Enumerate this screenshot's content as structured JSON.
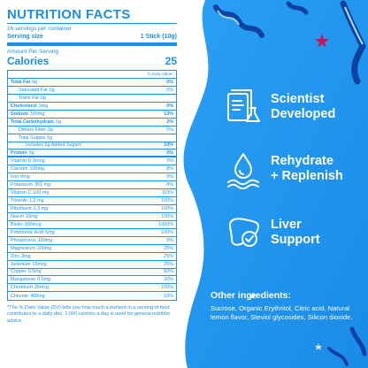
{
  "panel": {
    "title": "NUTRITION FACTS",
    "servings_per_container": "16 servings per container",
    "serving_size_label": "Serving size",
    "serving_size_value": "1 Stick (10g)",
    "amount_per_serving": "Amount Per Serving",
    "calories_label": "Calories",
    "calories_value": "25",
    "dv_header": "% Daily Value*",
    "rows": [
      {
        "label": "Total Fat",
        "amount": "0g",
        "dv": "0%",
        "bold": true,
        "indent": 0
      },
      {
        "label": "Saturated Fat",
        "amount": "0g",
        "dv": "0%",
        "bold": false,
        "indent": 1
      },
      {
        "label": "Trans Fat",
        "amount": "0g",
        "dv": "",
        "bold": false,
        "indent": 1
      },
      {
        "label": "Cholesterol",
        "amount": "0mg",
        "dv": "0%",
        "bold": true,
        "indent": 0
      },
      {
        "label": "Sodium",
        "amount": "300mg",
        "dv": "13%",
        "bold": true,
        "indent": 0
      },
      {
        "label": "Total Carbohydrate",
        "amount": "5g",
        "dv": "2%",
        "bold": true,
        "indent": 0
      },
      {
        "label": "Dietary Fiber",
        "amount": "0g",
        "dv": "0%",
        "bold": false,
        "indent": 1
      },
      {
        "label": "Total Sugars",
        "amount": "5g",
        "dv": "",
        "bold": false,
        "indent": 1
      },
      {
        "label": "Includes 5g Added Sugars",
        "amount": "",
        "dv": "10%",
        "bold": false,
        "indent": 2
      },
      {
        "label": "Protein",
        "amount": "0g",
        "dv": "0%",
        "bold": true,
        "indent": 0
      },
      {
        "label": "Vitamin D",
        "amount": "0mcg",
        "dv": "0%",
        "bold": false,
        "indent": 0
      },
      {
        "label": "Calcium",
        "amount": "100mg",
        "dv": "8%",
        "bold": false,
        "indent": 0
      },
      {
        "label": "Iron",
        "amount": "0mg",
        "dv": "0%",
        "bold": false,
        "indent": 0
      },
      {
        "label": "Potassium",
        "amount": "361 mg",
        "dv": "8%",
        "bold": false,
        "indent": 0
      },
      {
        "label": "Vitamin C",
        "amount": "100 mg",
        "dv": "110%",
        "bold": false,
        "indent": 0
      },
      {
        "label": "Thiamin",
        "amount": "1.2 mg",
        "dv": "100%",
        "bold": false,
        "indent": 0
      },
      {
        "label": "Riboflavin",
        "amount": "1.3 mg",
        "dv": "100%",
        "bold": false,
        "indent": 0
      },
      {
        "label": "Niacin",
        "amount": "15mg",
        "dv": "100%",
        "bold": false,
        "indent": 0
      },
      {
        "label": "Biotin",
        "amount": "300mcg",
        "dv": "1000%",
        "bold": false,
        "indent": 0
      },
      {
        "label": "Potothenic Acid",
        "amount": "5mg",
        "dv": "100%",
        "bold": false,
        "indent": 0
      },
      {
        "label": "Phosphorus",
        "amount": "100mg",
        "dv": "8%",
        "bold": false,
        "indent": 0
      },
      {
        "label": "Magnesium",
        "amount": "100mg",
        "dv": "25%",
        "bold": false,
        "indent": 0
      },
      {
        "label": "Zinc",
        "amount": "3mg",
        "dv": "25%",
        "bold": false,
        "indent": 0
      },
      {
        "label": "Selenium",
        "amount": "15mcg",
        "dv": "25%",
        "bold": false,
        "indent": 0
      },
      {
        "label": "Copper",
        "amount": "0.5mg",
        "dv": "60%",
        "bold": false,
        "indent": 0
      },
      {
        "label": "Manganese",
        "amount": "0.5mg",
        "dv": "20%",
        "bold": false,
        "indent": 0
      },
      {
        "label": "Chromium",
        "amount": "35mcg",
        "dv": "100%",
        "bold": false,
        "indent": 0
      },
      {
        "label": "Chloride",
        "amount": "400mg",
        "dv": "15%",
        "bold": false,
        "indent": 0
      }
    ],
    "footnote": "*The % Daily Value (DV) tells you how much a nutrient in a serving of food contributes to a daily diet. 2,000 calories a day is used for general nutrition advice."
  },
  "features": [
    {
      "icon": "document-flask-icon",
      "line1": "Scientist",
      "line2": "Developed"
    },
    {
      "icon": "water-drops-icon",
      "line1": "Rehydrate",
      "line2": "+ Replenish"
    },
    {
      "icon": "liver-check-icon",
      "line1": "Liver",
      "line2": "Support"
    }
  ],
  "ingredients": {
    "title": "Other ingredients:",
    "text": "Sucrose, Organic Erythritol, Citric acid, Natural lemon flavor, Steviol glycosides, Silicon dioxide."
  },
  "colors": {
    "brand_blue": "#1d8fe8",
    "panel_blue": "#2196f3",
    "white": "#ffffff"
  }
}
